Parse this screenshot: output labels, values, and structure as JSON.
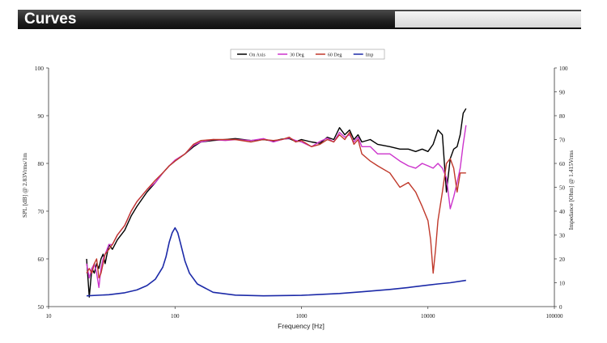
{
  "header": {
    "title": "Curves"
  },
  "chart_data": {
    "type": "line",
    "xscale": "log",
    "xlim": [
      10,
      100000
    ],
    "ylim": [
      50,
      100
    ],
    "y2lim": [
      0,
      100
    ],
    "xlabel": "Frequency [Hz]",
    "ylabel": "SPL [dB] @ 2.83Vrms/1m",
    "y2label": "Impedance [Ohm] @ 1.415Vrms",
    "xticks": [
      "10",
      "100",
      "1000",
      "10000",
      "100000"
    ],
    "yticks": [
      "50",
      "60",
      "70",
      "80",
      "90",
      "100"
    ],
    "y2ticks": [
      "0",
      "10",
      "20",
      "30",
      "40",
      "50",
      "60",
      "70",
      "80",
      "90",
      "100"
    ],
    "grid": false,
    "legend_position": "top",
    "series": [
      {
        "name": "On Axis",
        "axis": "left",
        "color": "#000000",
        "x": [
          20,
          21,
          22,
          23,
          24,
          25,
          26,
          27,
          28,
          30,
          32,
          35,
          40,
          45,
          50,
          60,
          70,
          80,
          90,
          100,
          120,
          140,
          160,
          200,
          250,
          300,
          400,
          500,
          600,
          700,
          800,
          900,
          1000,
          1200,
          1400,
          1600,
          1800,
          2000,
          2200,
          2400,
          2600,
          2800,
          3000,
          3500,
          4000,
          5000,
          6000,
          7000,
          8000,
          9000,
          10000,
          11000,
          12000,
          13000,
          14000,
          15000,
          16000,
          17000,
          18000,
          19000,
          20000
        ],
        "y": [
          60,
          52,
          58,
          57,
          59,
          58,
          60,
          61,
          59,
          63,
          62,
          64,
          66,
          69,
          71,
          74,
          76,
          78,
          79.5,
          80.5,
          82,
          83.5,
          84.5,
          84.8,
          85,
          85.2,
          84.8,
          85,
          84.7,
          85.1,
          85.2,
          84.6,
          85,
          84.5,
          84.2,
          85.5,
          85,
          87.5,
          86,
          87,
          85,
          86,
          84.5,
          85,
          84,
          83.5,
          83,
          83,
          82.5,
          83,
          82.5,
          84,
          87,
          86,
          74,
          81,
          83,
          83.5,
          86,
          90.5,
          91.5
        ]
      },
      {
        "name": "30 Deg",
        "axis": "left",
        "color": "#cc33cc",
        "x": [
          20,
          21,
          22,
          23,
          24,
          25,
          26,
          27,
          28,
          30,
          32,
          35,
          40,
          45,
          50,
          60,
          70,
          80,
          90,
          100,
          120,
          140,
          160,
          200,
          250,
          300,
          400,
          500,
          600,
          700,
          800,
          900,
          1000,
          1200,
          1400,
          1600,
          1800,
          2000,
          2200,
          2400,
          2600,
          2800,
          3000,
          3500,
          4000,
          5000,
          6000,
          7000,
          8000,
          9000,
          10000,
          11000,
          12000,
          13000,
          14000,
          15000,
          16000,
          17000,
          18000,
          19000,
          20000
        ],
        "y": [
          59,
          56,
          58,
          59,
          57,
          54,
          58,
          60,
          61,
          63,
          63,
          65,
          67,
          70,
          72,
          74.5,
          76,
          78,
          79.5,
          80.7,
          82,
          83.8,
          84.5,
          85,
          84.8,
          85,
          84.8,
          85.2,
          84.5,
          85,
          85.3,
          84.8,
          84.5,
          83.5,
          84.6,
          85.3,
          84.5,
          86.5,
          85.5,
          86,
          84.5,
          85.5,
          83.5,
          83.5,
          82,
          82,
          80.5,
          79.5,
          79,
          80,
          79.5,
          79,
          80,
          79,
          77,
          70.5,
          73,
          76,
          79,
          84,
          88
        ]
      },
      {
        "name": "60 Deg",
        "axis": "left",
        "color": "#c0392b",
        "x": [
          20,
          21,
          22,
          23,
          24,
          25,
          26,
          27,
          28,
          30,
          32,
          35,
          40,
          45,
          50,
          60,
          70,
          80,
          90,
          100,
          120,
          140,
          160,
          200,
          250,
          300,
          400,
          500,
          600,
          700,
          800,
          900,
          1000,
          1200,
          1400,
          1600,
          1800,
          2000,
          2200,
          2400,
          2600,
          2800,
          3000,
          3500,
          4000,
          5000,
          6000,
          7000,
          8000,
          9000,
          10000,
          10500,
          11000,
          11500,
          12000,
          13000,
          14000,
          15000,
          16000,
          17000,
          18000,
          19000,
          20000
        ],
        "y": [
          57,
          58,
          57,
          59,
          60,
          56,
          57,
          59,
          61,
          62,
          63,
          65,
          67,
          70,
          72,
          74.5,
          76.5,
          78,
          79.5,
          80.5,
          82,
          84,
          84.8,
          85,
          85,
          85,
          84.5,
          85,
          84.8,
          85,
          85.5,
          84.5,
          84.8,
          83.5,
          84,
          85,
          84.5,
          86,
          85,
          86.5,
          84,
          85,
          82,
          80.5,
          79.5,
          78,
          75,
          76,
          74,
          71,
          68,
          64,
          57,
          62,
          68,
          74,
          80,
          81,
          79,
          74,
          78,
          78,
          78
        ]
      },
      {
        "name": "Imp",
        "axis": "right",
        "color": "#1c2aa8",
        "x": [
          20,
          30,
          40,
          50,
          60,
          70,
          80,
          85,
          90,
          95,
          100,
          105,
          110,
          120,
          130,
          150,
          200,
          300,
          500,
          1000,
          2000,
          3000,
          5000,
          7000,
          10000,
          12000,
          15000,
          20000
        ],
        "y": [
          4.5,
          5,
          5.8,
          7,
          8.8,
          11.5,
          16.5,
          21,
          27,
          31,
          33,
          31,
          27,
          19,
          14,
          9.5,
          6,
          4.8,
          4.5,
          4.7,
          5.5,
          6.2,
          7.2,
          8,
          9,
          9.5,
          10,
          11
        ]
      }
    ]
  }
}
